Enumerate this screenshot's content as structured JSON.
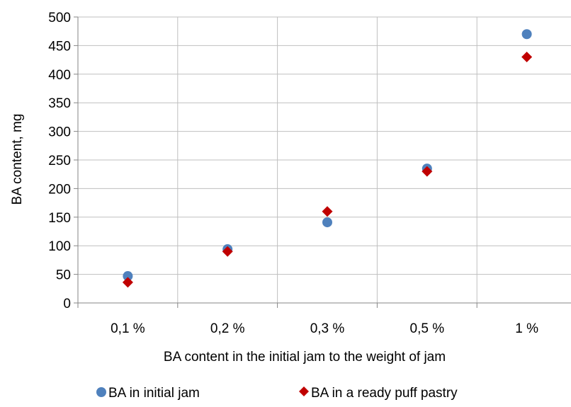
{
  "chart_data": {
    "type": "scatter",
    "categories": [
      "0,1 %",
      "0,2 %",
      "0,3 %",
      "0,5 %",
      "1 %"
    ],
    "xlabel": "BA content in the initial jam to the weight of jam",
    "ylabel": "BA content, mg",
    "ylim": [
      0,
      500
    ],
    "yticks": [
      0,
      50,
      100,
      150,
      200,
      250,
      300,
      350,
      400,
      450,
      500
    ],
    "grid": true,
    "legend": "bottom",
    "series": [
      {
        "name": "BA in initial jam",
        "marker": "circle",
        "color": "#4f81bd",
        "values": [
          47,
          94,
          141,
          235,
          470
        ]
      },
      {
        "name": "BA in a ready puff pastry",
        "marker": "diamond",
        "color": "#c00000",
        "values": [
          36,
          90,
          160,
          230,
          430
        ]
      }
    ]
  }
}
